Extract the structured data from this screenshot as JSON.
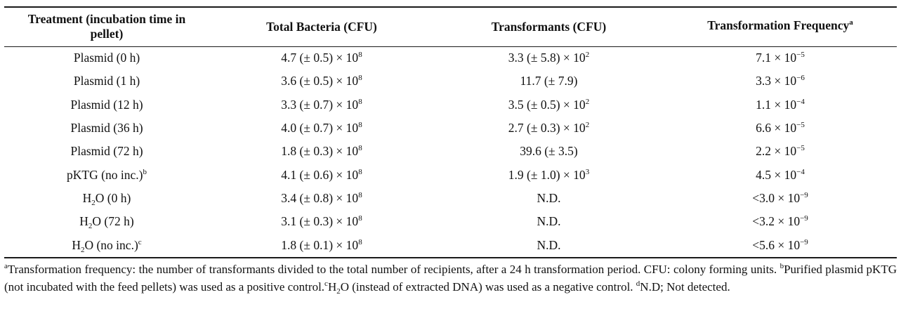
{
  "headers": {
    "treatment": "Treatment (incubation time in pellet)",
    "total": "Total Bacteria (CFU)",
    "transformants": "Transformants (CFU)",
    "frequency": "Transformation Frequency",
    "frequency_sup": "a"
  },
  "rows": [
    {
      "t_pre": "Plasmid (0 h)",
      "t_sup": "",
      "t_sub": "",
      "t_post": "",
      "total_base": "4.7 (± 0.5)  × 10",
      "total_exp": "8",
      "tr_base": "3.3 (± 5.8) × 10",
      "tr_exp": "2",
      "f_base": "7.1 × 10",
      "f_exp": "−5"
    },
    {
      "t_pre": "Plasmid (1 h)",
      "t_sup": "",
      "t_sub": "",
      "t_post": "",
      "total_base": "3.6 (± 0.5) × 10",
      "total_exp": "8",
      "tr_base": "11.7 (± 7.9)",
      "tr_exp": "",
      "f_base": "3.3 × 10",
      "f_exp": "−6"
    },
    {
      "t_pre": "Plasmid (12 h)",
      "t_sup": "",
      "t_sub": "",
      "t_post": "",
      "total_base": "3.3 (± 0.7) × 10",
      "total_exp": "8",
      "tr_base": "3.5 (± 0.5) × 10",
      "tr_exp": "2",
      "f_base": "1.1 × 10",
      "f_exp": "−4"
    },
    {
      "t_pre": "Plasmid (36 h)",
      "t_sup": "",
      "t_sub": "",
      "t_post": "",
      "total_base": "4.0 (± 0.7) × 10",
      "total_exp": "8",
      "tr_base": "2.7 (± 0.3) × 10",
      "tr_exp": "2",
      "f_base": "6.6 × 10",
      "f_exp": "−5"
    },
    {
      "t_pre": "Plasmid (72 h)",
      "t_sup": "",
      "t_sub": "",
      "t_post": "",
      "total_base": "1.8 (± 0.3) × 10",
      "total_exp": "8",
      "tr_base": "39.6 (± 3.5)",
      "tr_exp": "",
      "f_base": "2.2 × 10",
      "f_exp": "−5"
    },
    {
      "t_pre": "pKTG (no inc.)",
      "t_sup": "b",
      "t_sub": "",
      "t_post": "",
      "total_base": "4.1 (± 0.6) × 10",
      "total_exp": "8",
      "tr_base": "1.9 (± 1.0) × 10",
      "tr_exp": "3",
      "f_base": "4.5 × 10",
      "f_exp": "−4"
    },
    {
      "t_pre": "H",
      "t_sub": "2",
      "t_post": "O (0 h)",
      "t_sup": "",
      "total_base": "3.4 (± 0.8) × 10",
      "total_exp": "8",
      "tr_base": "N.D.",
      "tr_exp": "",
      "f_base": "<3.0 × 10",
      "f_exp": "−9"
    },
    {
      "t_pre": "H",
      "t_sub": "2",
      "t_post": "O (72 h)",
      "t_sup": "",
      "total_base": "3.1 (± 0.3) × 10",
      "total_exp": "8",
      "tr_base": "N.D.",
      "tr_exp": "",
      "f_base": "<3.2 × 10",
      "f_exp": "−9"
    },
    {
      "t_pre": "H",
      "t_sub": "2",
      "t_post": "O (no inc.)",
      "t_sup": "c",
      "total_base": "1.8 (± 0.1) × 10",
      "total_exp": "8",
      "tr_base": "N.D.",
      "tr_exp": "",
      "f_base": "<5.6 × 10",
      "f_exp": "−9"
    }
  ],
  "footnotes": {
    "a_mark": "a",
    "a_text": "Transformation frequency: the number of transformants divided to the total number of recipients, after a 24 h transformation period. CFU: colony forming units. ",
    "b_mark": "b",
    "b_text": "Purified plasmid pKTG (not incubated with the feed pellets) was used as a positive control.",
    "c_mark": "c",
    "c_pre": "H",
    "c_sub": "2",
    "c_text": "O (instead of extracted DNA) was used as a negative control. ",
    "d_mark": "d",
    "d_text": "N.D; Not detected."
  }
}
